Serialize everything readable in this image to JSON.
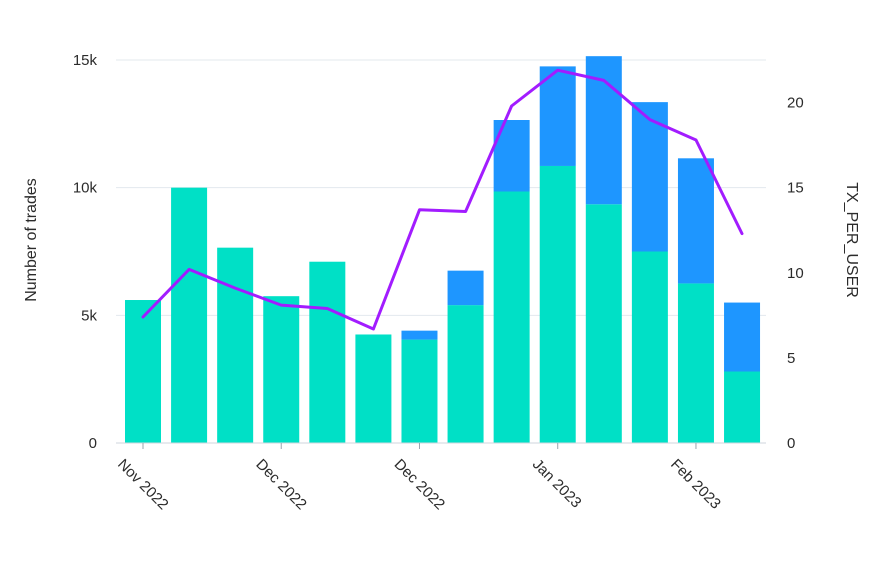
{
  "chart_data": {
    "type": "bar",
    "stacked": true,
    "x_tick_labels": [
      "Nov 2022",
      "Dec 2022",
      "Dec 2022",
      "Jan 2023",
      "Feb 2023"
    ],
    "bar_count": 14,
    "series": [
      {
        "color": "#00e0c6",
        "values": [
          5600,
          10000,
          7650,
          5750,
          7100,
          4250,
          4050,
          5400,
          9850,
          10850,
          9350,
          7500,
          6250,
          2800
        ]
      },
      {
        "color": "#1e96ff",
        "values": [
          0,
          0,
          0,
          0,
          0,
          0,
          350,
          1350,
          2800,
          3900,
          5800,
          5850,
          4900,
          2700
        ]
      }
    ],
    "line_series": {
      "name": "TX_PER_USER",
      "color": "#a21cff",
      "values": [
        7.4,
        10.2,
        9.1,
        8.1,
        7.9,
        6.7,
        13.7,
        13.6,
        19.8,
        21.9,
        21.3,
        19.0,
        17.8,
        12.3
      ]
    },
    "ylabel_left": "Number of trades",
    "ylabel_right": "TX_PER_USER",
    "ylim_left": [
      0,
      15000
    ],
    "yticks_left": [
      {
        "value": 0,
        "label": "0"
      },
      {
        "value": 5000,
        "label": "5k"
      },
      {
        "value": 10000,
        "label": "10k"
      },
      {
        "value": 15000,
        "label": "15k"
      }
    ],
    "ylim_right": [
      0,
      22.5
    ],
    "yticks_right": [
      {
        "value": 0,
        "label": "0"
      },
      {
        "value": 5,
        "label": "5"
      },
      {
        "value": 10,
        "label": "10"
      },
      {
        "value": 15,
        "label": "15"
      },
      {
        "value": 20,
        "label": "20"
      }
    ],
    "grid": true,
    "legend": "none"
  }
}
